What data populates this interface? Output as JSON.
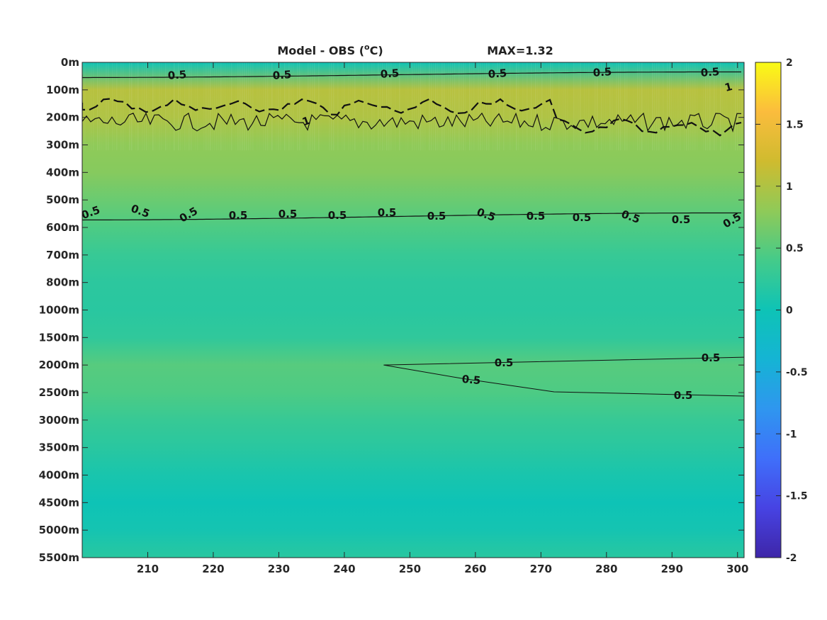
{
  "chart_data": {
    "type": "heatmap",
    "title": "Model - OBS (",
    "title_unit_sup": "o",
    "title_unit": "C)",
    "max_label": "MAX=1.32",
    "xlim": [
      200,
      301
    ],
    "x_ticks": [
      210,
      220,
      230,
      240,
      250,
      260,
      270,
      280,
      290,
      300
    ],
    "y_tick_labels": [
      "0m",
      "100m",
      "200m",
      "300m",
      "400m",
      "500m",
      "600m",
      "700m",
      "800m",
      "1000m",
      "1500m",
      "2000m",
      "2500m",
      "3000m",
      "3500m",
      "4000m",
      "4500m",
      "5000m",
      "5500m"
    ],
    "colorbar": {
      "ticks": [
        2,
        1.5,
        1,
        0.5,
        0,
        -0.5,
        -1,
        -1.5,
        -2
      ],
      "range": [
        -2,
        2
      ],
      "colormap": "parula",
      "colors": [
        "#3e26a8",
        "#4743e3",
        "#3f6ffa",
        "#2f96ef",
        "#15b4d4",
        "#0ec3b6",
        "#44cb8a",
        "#8fca58",
        "#cfbb2f",
        "#fbbc3d",
        "#f9fb15"
      ]
    },
    "depth_profile": [
      {
        "depth": "0m",
        "value": 0.0
      },
      {
        "depth": "100m",
        "value": 1.05
      },
      {
        "depth": "200m",
        "value": 1.0
      },
      {
        "depth": "300m",
        "value": 0.8
      },
      {
        "depth": "400m",
        "value": 0.75
      },
      {
        "depth": "500m",
        "value": 0.6
      },
      {
        "depth": "600m",
        "value": 0.45
      },
      {
        "depth": "700m",
        "value": 0.3
      },
      {
        "depth": "800m",
        "value": 0.22
      },
      {
        "depth": "1000m",
        "value": 0.2
      },
      {
        "depth": "1500m",
        "value": 0.25
      },
      {
        "depth": "2000m",
        "value": 0.5
      },
      {
        "depth": "2500m",
        "value": 0.45
      },
      {
        "depth": "3000m",
        "value": 0.3
      },
      {
        "depth": "3500m",
        "value": 0.2
      },
      {
        "depth": "4000m",
        "value": 0.08
      },
      {
        "depth": "4500m",
        "value": 0.0
      },
      {
        "depth": "5000m",
        "value": 0.05
      },
      {
        "depth": "5500m",
        "value": 0.2
      }
    ],
    "contours": [
      {
        "level": 0.5,
        "label": "0.5",
        "approx_depth": "50m"
      },
      {
        "level": 1,
        "label": "1",
        "approx_depth": "150m-250m"
      },
      {
        "level": 0.5,
        "label": "0.5",
        "approx_depth": "550m"
      },
      {
        "level": 0.5,
        "label": "0.5",
        "approx_depth": "1900m-2500m",
        "x_start": 246
      }
    ]
  }
}
